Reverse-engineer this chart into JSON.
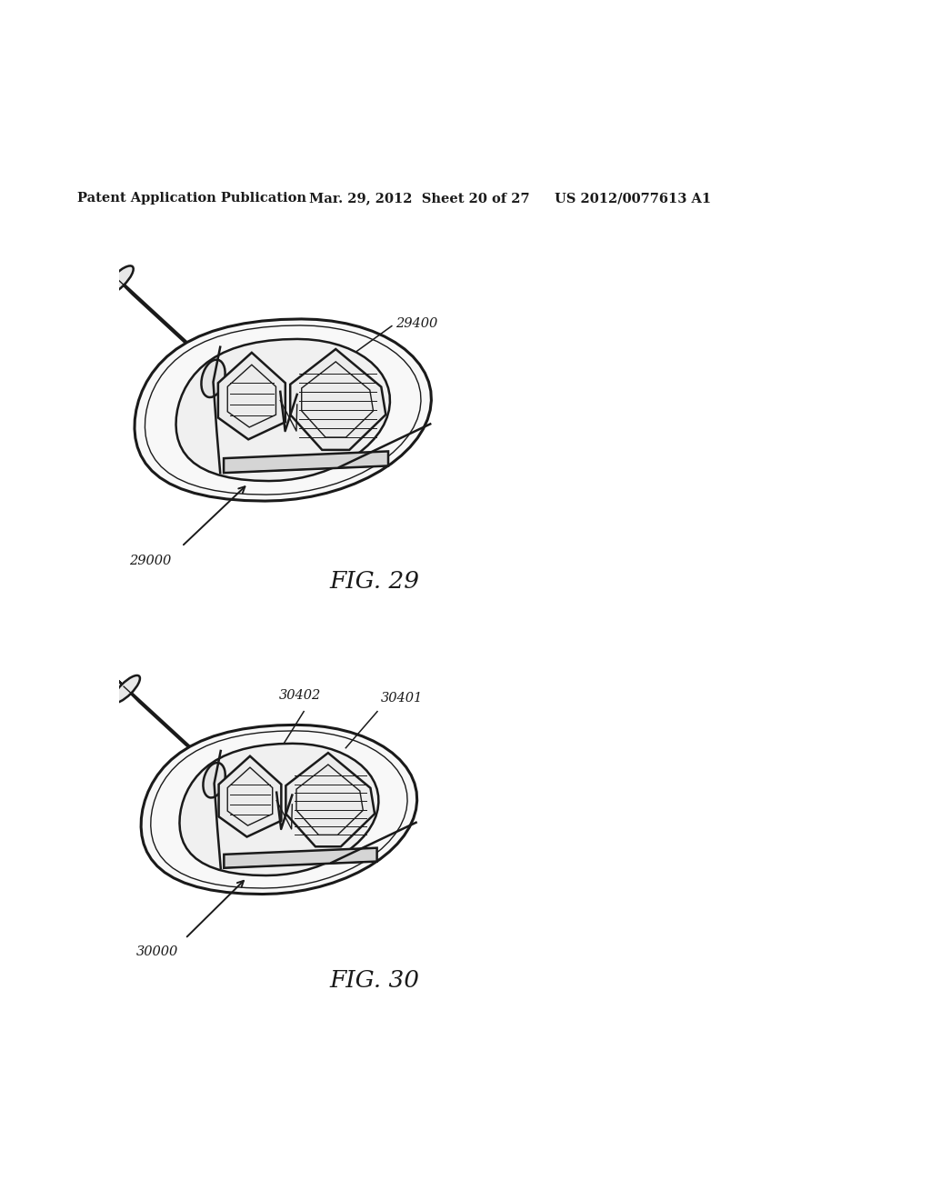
{
  "background_color": "#ffffff",
  "header_left": "Patent Application Publication",
  "header_mid": "Mar. 29, 2012  Sheet 20 of 27",
  "header_right": "US 2012/0077613 A1",
  "fig29_caption": "FIG. 29",
  "fig30_caption": "FIG. 30",
  "fig29_label_main": "29000",
  "fig29_label_part": "29400",
  "fig30_label_main": "30000",
  "fig30_label_part1": "30401",
  "fig30_label_part2": "30402",
  "line_color": "#1a1a1a",
  "lw_main": 1.8,
  "lw_thin": 1.0,
  "lw_thick": 2.2,
  "lw_rib": 0.7
}
